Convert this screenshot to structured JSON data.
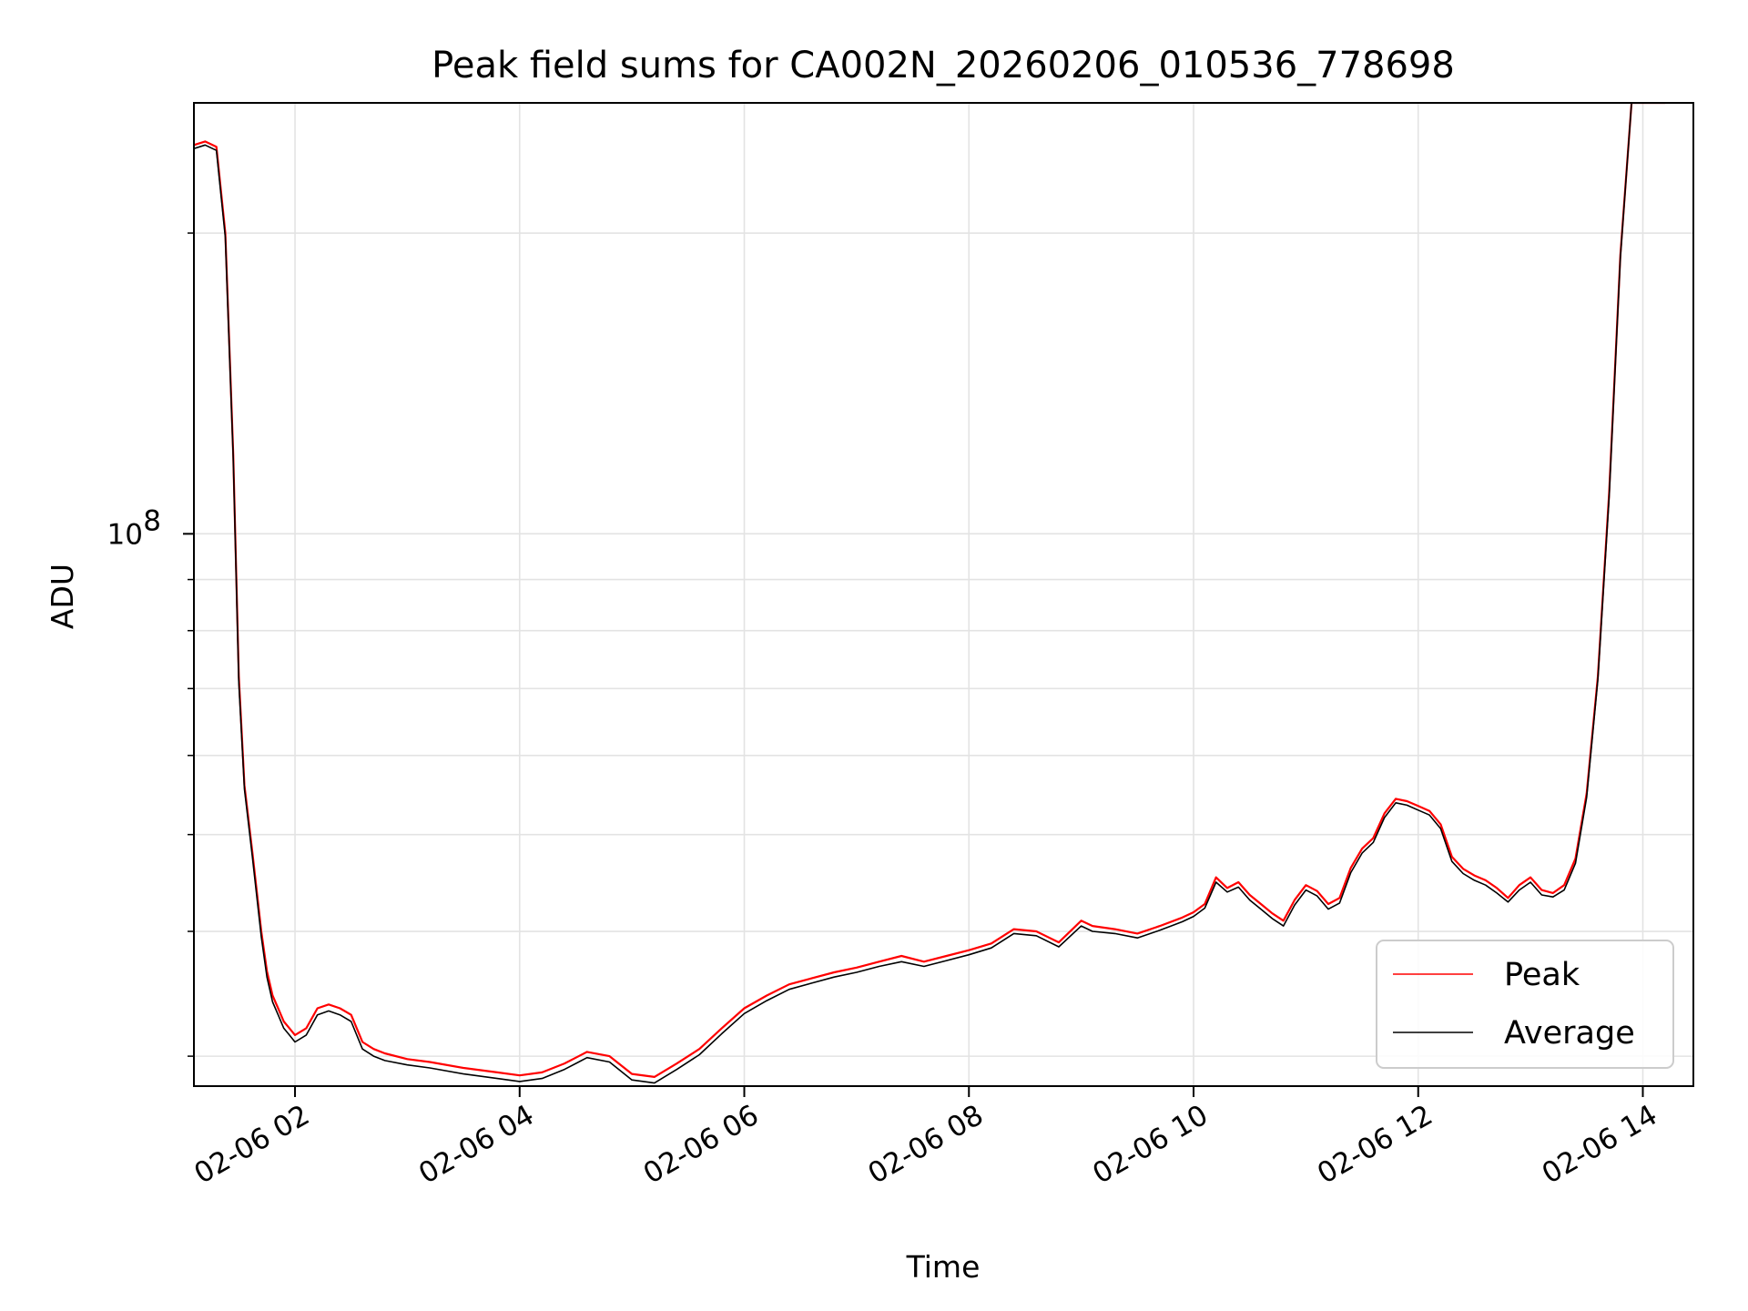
{
  "chart_data": {
    "type": "line",
    "title": "Peak field sums for CA002N_20260206_010536_778698",
    "xlabel": "Time",
    "ylabel": "ADU",
    "yscale": "log",
    "grid": true,
    "xlim_hours": [
      1.1,
      14.45
    ],
    "ylim": [
      28000000,
      270000000
    ],
    "x_ticks": [
      {
        "hour": 2,
        "label": "02-06 02"
      },
      {
        "hour": 4,
        "label": "02-06 04"
      },
      {
        "hour": 6,
        "label": "02-06 06"
      },
      {
        "hour": 8,
        "label": "02-06 08"
      },
      {
        "hour": 10,
        "label": "02-06 10"
      },
      {
        "hour": 12,
        "label": "02-06 12"
      },
      {
        "hour": 14,
        "label": "02-06 14"
      }
    ],
    "y_major_ticks": [
      {
        "value": 100000000,
        "label_base": "10",
        "label_exp": "8"
      }
    ],
    "y_minor_ticks": [
      30000000,
      40000000,
      50000000,
      60000000,
      70000000,
      80000000,
      90000000,
      200000000
    ],
    "legend": {
      "position": "lower-right",
      "entries": [
        "Peak",
        "Average"
      ]
    },
    "series": [
      {
        "name": "Peak",
        "color": "#ff0000",
        "x_hours": [
          1.1,
          1.2,
          1.3,
          1.38,
          1.45,
          1.5,
          1.55,
          1.62,
          1.7,
          1.75,
          1.8,
          1.85,
          1.9,
          1.95,
          2.0,
          2.1,
          2.2,
          2.3,
          2.4,
          2.5,
          2.6,
          2.7,
          2.8,
          3.0,
          3.2,
          3.5,
          3.8,
          4.0,
          4.2,
          4.4,
          4.6,
          4.8,
          5.0,
          5.2,
          5.4,
          5.6,
          5.8,
          6.0,
          6.2,
          6.4,
          6.6,
          6.8,
          7.0,
          7.2,
          7.4,
          7.6,
          7.8,
          8.0,
          8.2,
          8.4,
          8.6,
          8.8,
          9.0,
          9.1,
          9.3,
          9.5,
          9.7,
          9.9,
          10.0,
          10.1,
          10.2,
          10.3,
          10.4,
          10.5,
          10.6,
          10.7,
          10.8,
          10.9,
          11.0,
          11.1,
          11.2,
          11.3,
          11.4,
          11.5,
          11.6,
          11.7,
          11.8,
          11.9,
          12.0,
          12.1,
          12.2,
          12.3,
          12.4,
          12.5,
          12.6,
          12.7,
          12.8,
          12.9,
          13.0,
          13.1,
          13.2,
          13.3,
          13.4,
          13.5,
          13.6,
          13.7,
          13.8,
          13.9,
          14.0,
          14.1,
          14.2
        ],
        "values": [
          245000000,
          247000000,
          244000000,
          200000000,
          120000000,
          72000000,
          56000000,
          48000000,
          40000000,
          36500000,
          34500000,
          33500000,
          32500000,
          32000000,
          31500000,
          32000000,
          33500000,
          33800000,
          33500000,
          33000000,
          31000000,
          30500000,
          30200000,
          29800000,
          29600000,
          29200000,
          28900000,
          28700000,
          28900000,
          29500000,
          30300000,
          30000000,
          28800000,
          28600000,
          29500000,
          30500000,
          32000000,
          33500000,
          34500000,
          35400000,
          35900000,
          36400000,
          36800000,
          37300000,
          37800000,
          37300000,
          37800000,
          38300000,
          38900000,
          40200000,
          40000000,
          39000000,
          41000000,
          40500000,
          40200000,
          39800000,
          40500000,
          41300000,
          41800000,
          42600000,
          45300000,
          44200000,
          44800000,
          43500000,
          42600000,
          41700000,
          41000000,
          43000000,
          44500000,
          43900000,
          42600000,
          43200000,
          46300000,
          48400000,
          49600000,
          52500000,
          54300000,
          54000000,
          53400000,
          52800000,
          51200000,
          47500000,
          46200000,
          45500000,
          45000000,
          44200000,
          43200000,
          44500000,
          45300000,
          44000000,
          43700000,
          44500000,
          47300000,
          55000000,
          72000000,
          110000000,
          190000000,
          270000000,
          270000000,
          270000000,
          270000000
        ]
      },
      {
        "name": "Average",
        "color": "#000000",
        "x_hours": [
          1.1,
          1.2,
          1.3,
          1.38,
          1.45,
          1.5,
          1.55,
          1.62,
          1.7,
          1.75,
          1.8,
          1.85,
          1.9,
          1.95,
          2.0,
          2.1,
          2.2,
          2.3,
          2.4,
          2.5,
          2.6,
          2.7,
          2.8,
          3.0,
          3.2,
          3.5,
          3.8,
          4.0,
          4.2,
          4.4,
          4.6,
          4.8,
          5.0,
          5.2,
          5.4,
          5.6,
          5.8,
          6.0,
          6.2,
          6.4,
          6.6,
          6.8,
          7.0,
          7.2,
          7.4,
          7.6,
          7.8,
          8.0,
          8.2,
          8.4,
          8.6,
          8.8,
          9.0,
          9.1,
          9.3,
          9.5,
          9.7,
          9.9,
          10.0,
          10.1,
          10.2,
          10.3,
          10.4,
          10.5,
          10.6,
          10.7,
          10.8,
          10.9,
          11.0,
          11.1,
          11.2,
          11.3,
          11.4,
          11.5,
          11.6,
          11.7,
          11.8,
          11.9,
          12.0,
          12.1,
          12.2,
          12.3,
          12.4,
          12.5,
          12.6,
          12.7,
          12.8,
          12.9,
          13.0,
          13.1,
          13.2,
          13.3,
          13.4,
          13.5,
          13.6,
          13.7,
          13.8,
          13.9,
          14.0,
          14.1,
          14.2
        ],
        "values": [
          243000000,
          245000000,
          242000000,
          198000000,
          119000000,
          71000000,
          55500000,
          47500000,
          39500000,
          36000000,
          34000000,
          33000000,
          32000000,
          31500000,
          31000000,
          31500000,
          33000000,
          33300000,
          33000000,
          32500000,
          30500000,
          30000000,
          29700000,
          29400000,
          29200000,
          28800000,
          28500000,
          28300000,
          28500000,
          29100000,
          29900000,
          29600000,
          28400000,
          28200000,
          29100000,
          30100000,
          31600000,
          33100000,
          34100000,
          35000000,
          35500000,
          36000000,
          36400000,
          36900000,
          37300000,
          36900000,
          37400000,
          37900000,
          38500000,
          39800000,
          39600000,
          38600000,
          40500000,
          40000000,
          39800000,
          39400000,
          40100000,
          40900000,
          41400000,
          42200000,
          44800000,
          43800000,
          44300000,
          43000000,
          42100000,
          41200000,
          40500000,
          42500000,
          44000000,
          43400000,
          42100000,
          42700000,
          45800000,
          47900000,
          49100000,
          52000000,
          53800000,
          53500000,
          52900000,
          52300000,
          50700000,
          47000000,
          45700000,
          45000000,
          44500000,
          43700000,
          42800000,
          44000000,
          44800000,
          43500000,
          43300000,
          44000000,
          46800000,
          54500000,
          71500000,
          109000000,
          189000000,
          270000000,
          270000000,
          270000000,
          270000000
        ]
      }
    ]
  }
}
